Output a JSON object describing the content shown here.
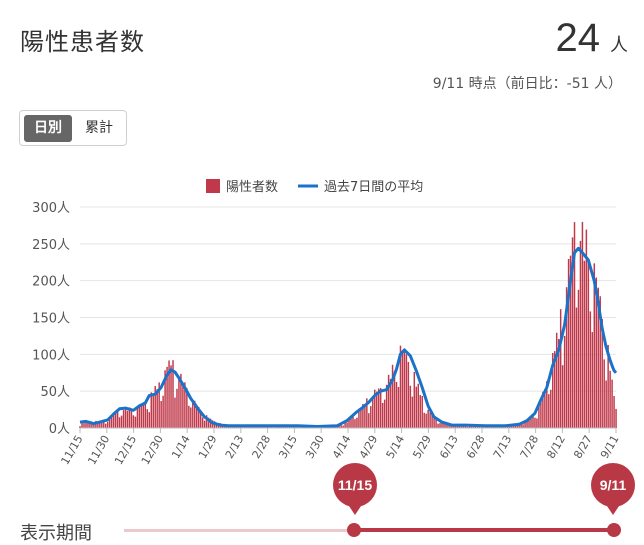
{
  "header": {
    "title": "陽性患者数",
    "count": "24",
    "unit": "人",
    "as_of": "9/11 時点（前日比：-51 人）"
  },
  "tabs": [
    {
      "label": "日別",
      "active": true
    },
    {
      "label": "累計",
      "active": false
    }
  ],
  "period": {
    "label": "表示期間",
    "start": "11/15",
    "end": "9/11"
  },
  "colors": {
    "bar": "#c0394a",
    "line": "#1a73c8",
    "accent": "#b83846"
  },
  "chart_data": {
    "type": "bar",
    "legend": [
      "陽性者数",
      "過去7日間の平均"
    ],
    "legend_position": "top-center",
    "y_ticks": [
      "0人",
      "50人",
      "100人",
      "150人",
      "200人",
      "250人",
      "300人"
    ],
    "ylim": [
      0,
      300
    ],
    "grid": true,
    "x_ticks": [
      "11/15",
      "11/30",
      "12/15",
      "12/30",
      "1/14",
      "1/29",
      "2/13",
      "2/28",
      "3/15",
      "3/30",
      "4/14",
      "4/29",
      "5/14",
      "5/29",
      "6/13",
      "6/28",
      "7/13",
      "7/28",
      "8/12",
      "8/27",
      "9/11"
    ],
    "anchors_bars": [
      [
        0,
        5
      ],
      [
        3,
        8
      ],
      [
        7,
        9
      ],
      [
        10,
        9
      ],
      [
        14,
        12
      ],
      [
        17,
        18
      ],
      [
        20,
        24
      ],
      [
        23,
        26
      ],
      [
        27,
        25
      ],
      [
        30,
        28
      ],
      [
        33,
        34
      ],
      [
        35,
        40
      ],
      [
        38,
        52
      ],
      [
        41,
        60
      ],
      [
        44,
        82
      ],
      [
        46,
        88
      ],
      [
        48,
        80
      ],
      [
        50,
        72
      ],
      [
        53,
        58
      ],
      [
        56,
        42
      ],
      [
        60,
        26
      ],
      [
        63,
        18
      ],
      [
        67,
        10
      ],
      [
        71,
        6
      ],
      [
        75,
        4
      ],
      [
        80,
        3
      ],
      [
        90,
        2
      ],
      [
        100,
        2
      ],
      [
        110,
        2
      ],
      [
        120,
        2
      ],
      [
        130,
        4
      ],
      [
        135,
        8
      ],
      [
        140,
        22
      ],
      [
        143,
        30
      ],
      [
        146,
        40
      ],
      [
        149,
        48
      ],
      [
        152,
        52
      ],
      [
        155,
        60
      ],
      [
        158,
        78
      ],
      [
        160,
        90
      ],
      [
        162,
        104
      ],
      [
        164,
        100
      ],
      [
        167,
        84
      ],
      [
        170,
        62
      ],
      [
        173,
        40
      ],
      [
        176,
        24
      ],
      [
        179,
        14
      ],
      [
        183,
        8
      ],
      [
        188,
        4
      ],
      [
        195,
        3
      ],
      [
        205,
        3
      ],
      [
        215,
        4
      ],
      [
        222,
        6
      ],
      [
        226,
        10
      ],
      [
        230,
        20
      ],
      [
        233,
        38
      ],
      [
        236,
        60
      ],
      [
        239,
        95
      ],
      [
        242,
        130
      ],
      [
        245,
        180
      ],
      [
        248,
        230
      ],
      [
        250,
        265
      ],
      [
        252,
        275
      ],
      [
        254,
        255
      ],
      [
        257,
        240
      ],
      [
        260,
        210
      ],
      [
        262,
        185
      ],
      [
        264,
        150
      ],
      [
        266,
        120
      ],
      [
        268,
        85
      ],
      [
        269,
        60
      ],
      [
        270,
        45
      ],
      [
        271,
        24
      ]
    ],
    "avg_line": [
      [
        0,
        8
      ],
      [
        3,
        9
      ],
      [
        7,
        6
      ],
      [
        10,
        8
      ],
      [
        14,
        11
      ],
      [
        17,
        19
      ],
      [
        20,
        26
      ],
      [
        23,
        27
      ],
      [
        27,
        24
      ],
      [
        30,
        30
      ],
      [
        33,
        34
      ],
      [
        35,
        44
      ],
      [
        38,
        46
      ],
      [
        41,
        55
      ],
      [
        44,
        72
      ],
      [
        46,
        79
      ],
      [
        48,
        76
      ],
      [
        50,
        68
      ],
      [
        53,
        55
      ],
      [
        56,
        40
      ],
      [
        60,
        25
      ],
      [
        63,
        15
      ],
      [
        67,
        7
      ],
      [
        71,
        4
      ],
      [
        75,
        3
      ],
      [
        80,
        3
      ],
      [
        90,
        3
      ],
      [
        100,
        3
      ],
      [
        110,
        3
      ],
      [
        120,
        2
      ],
      [
        130,
        3
      ],
      [
        135,
        10
      ],
      [
        140,
        22
      ],
      [
        143,
        28
      ],
      [
        146,
        35
      ],
      [
        149,
        44
      ],
      [
        152,
        50
      ],
      [
        155,
        52
      ],
      [
        158,
        65
      ],
      [
        160,
        80
      ],
      [
        162,
        100
      ],
      [
        164,
        106
      ],
      [
        167,
        98
      ],
      [
        170,
        78
      ],
      [
        173,
        55
      ],
      [
        176,
        30
      ],
      [
        179,
        15
      ],
      [
        183,
        8
      ],
      [
        188,
        4
      ],
      [
        195,
        4
      ],
      [
        205,
        3
      ],
      [
        215,
        3
      ],
      [
        222,
        5
      ],
      [
        226,
        10
      ],
      [
        230,
        20
      ],
      [
        233,
        38
      ],
      [
        236,
        55
      ],
      [
        239,
        85
      ],
      [
        242,
        105
      ],
      [
        245,
        140
      ],
      [
        248,
        200
      ],
      [
        250,
        238
      ],
      [
        252,
        244
      ],
      [
        254,
        238
      ],
      [
        257,
        228
      ],
      [
        260,
        200
      ],
      [
        262,
        170
      ],
      [
        264,
        135
      ],
      [
        266,
        110
      ],
      [
        268,
        92
      ],
      [
        269,
        85
      ],
      [
        270,
        78
      ],
      [
        271,
        75
      ]
    ],
    "x_range": [
      0,
      271
    ]
  }
}
